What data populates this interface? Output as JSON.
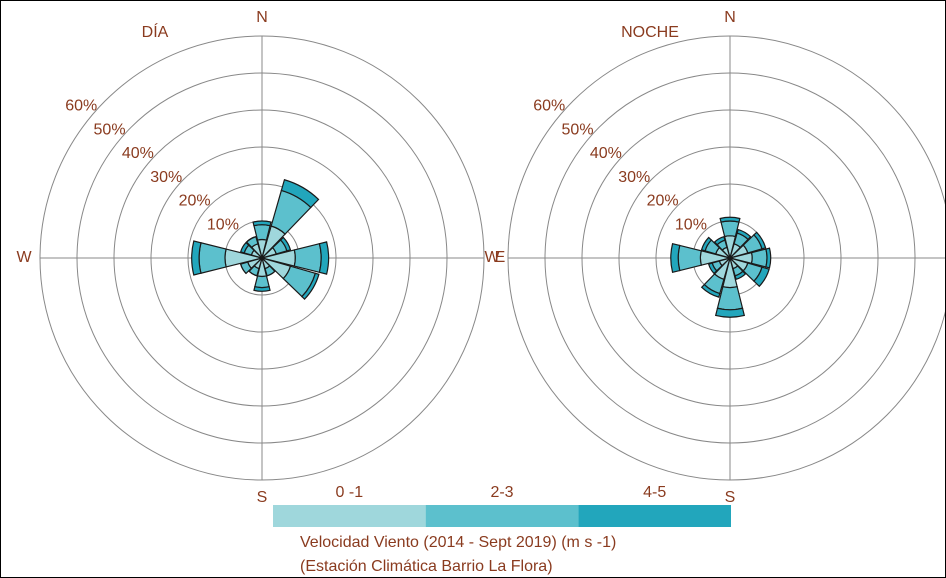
{
  "chart_data": [
    {
      "type": "windrose",
      "title": "DÍA",
      "x": [
        0,
        30,
        60,
        90,
        120,
        150,
        180,
        210,
        240,
        270,
        300,
        330
      ],
      "xlim": [
        0,
        360
      ],
      "xticks": [
        {
          "value": 0,
          "label": "N"
        },
        {
          "value": 90,
          "label": "E"
        },
        {
          "value": 180,
          "label": "S"
        },
        {
          "value": 270,
          "label": "W"
        }
      ],
      "ylim": [
        0,
        60
      ],
      "yticks": [
        {
          "value": 10,
          "label": "10%"
        },
        {
          "value": 20,
          "label": "20%"
        },
        {
          "value": 30,
          "label": "30%"
        },
        {
          "value": 40,
          "label": "40%"
        },
        {
          "value": 50,
          "label": "50%"
        },
        {
          "value": 60,
          "label": "60%"
        }
      ],
      "grid": true,
      "series": [
        {
          "color": "#9fd7dc",
          "values": [
            5,
            9,
            4,
            9,
            8,
            3,
            5,
            3,
            4,
            10,
            3,
            4
          ]
        },
        {
          "color": "#5cc0cd",
          "values": [
            4,
            10,
            3,
            7,
            7,
            2,
            3,
            2,
            2,
            7,
            2,
            2
          ]
        },
        {
          "color": "#22a6bc",
          "values": [
            1,
            3,
            1,
            2,
            1,
            0,
            1,
            0,
            0,
            2,
            1,
            0
          ]
        }
      ]
    },
    {
      "type": "windrose",
      "title": "NOCHE",
      "x": [
        0,
        30,
        60,
        90,
        120,
        150,
        180,
        210,
        240,
        270,
        300,
        330
      ],
      "xlim": [
        0,
        360
      ],
      "xticks": [
        {
          "value": 0,
          "label": "N"
        },
        {
          "value": 90,
          "label": "E"
        },
        {
          "value": 180,
          "label": "S"
        },
        {
          "value": 270,
          "label": "W"
        }
      ],
      "ylim": [
        0,
        60
      ],
      "yticks": [
        {
          "value": 10,
          "label": "10%"
        },
        {
          "value": 20,
          "label": "20%"
        },
        {
          "value": 30,
          "label": "30%"
        },
        {
          "value": 40,
          "label": "40%"
        },
        {
          "value": 50,
          "label": "50%"
        },
        {
          "value": 60,
          "label": "60%"
        }
      ],
      "grid": true,
      "series": [
        {
          "color": "#9fd7dc",
          "values": [
            6,
            4,
            5,
            6,
            5,
            3,
            8,
            6,
            3,
            8,
            4,
            3
          ]
        },
        {
          "color": "#5cc0cd",
          "values": [
            4,
            3,
            4,
            4,
            4,
            2,
            6,
            4,
            2,
            6,
            3,
            2
          ]
        },
        {
          "color": "#22a6bc",
          "values": [
            1,
            1,
            1,
            1,
            2,
            1,
            2,
            1,
            1,
            2,
            1,
            1
          ]
        }
      ]
    }
  ],
  "legend": {
    "items": [
      {
        "name": "0 -1",
        "color": "#9fd7dc"
      },
      {
        "name": "2-3",
        "color": "#5cc0cd"
      },
      {
        "name": "4-5",
        "color": "#22a6bc"
      }
    ],
    "title": "Velocidad Viento (2014 - Sept 2019) (m s -1)",
    "subtitle": "(Estación Climática Barrio La Flora)"
  }
}
